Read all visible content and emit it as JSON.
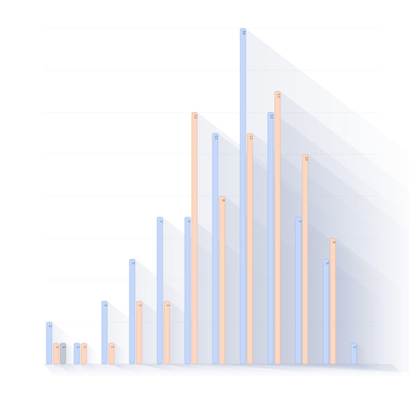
{
  "chart_data": {
    "type": "bar",
    "title": "",
    "xlabel": "",
    "ylabel": "",
    "ylim": [
      0,
      16
    ],
    "grid": true,
    "legend": "none",
    "categories": [
      "",
      "",
      "",
      "",
      "",
      "",
      "",
      "",
      "",
      "",
      "",
      ""
    ],
    "series": [
      {
        "color": "#c5d8fa",
        "stroke": "#8fb0e6",
        "text_color": "#4f6fa8",
        "values": [
          2,
          1,
          3,
          5,
          7,
          7,
          11,
          16,
          12,
          7,
          5,
          1
        ]
      },
      {
        "color": "#fbd8c4",
        "stroke": "#e7a987",
        "text_color": "#a8644a",
        "values": [
          1,
          1,
          1,
          3,
          3,
          12,
          8,
          11,
          13,
          10,
          6,
          null
        ]
      },
      {
        "color": "#c4c7cf",
        "stroke": "#9ea2ab",
        "text_color": "#5f636b",
        "values": [
          1,
          null,
          null,
          null,
          null,
          null,
          null,
          null,
          null,
          null,
          null,
          null
        ]
      }
    ]
  }
}
